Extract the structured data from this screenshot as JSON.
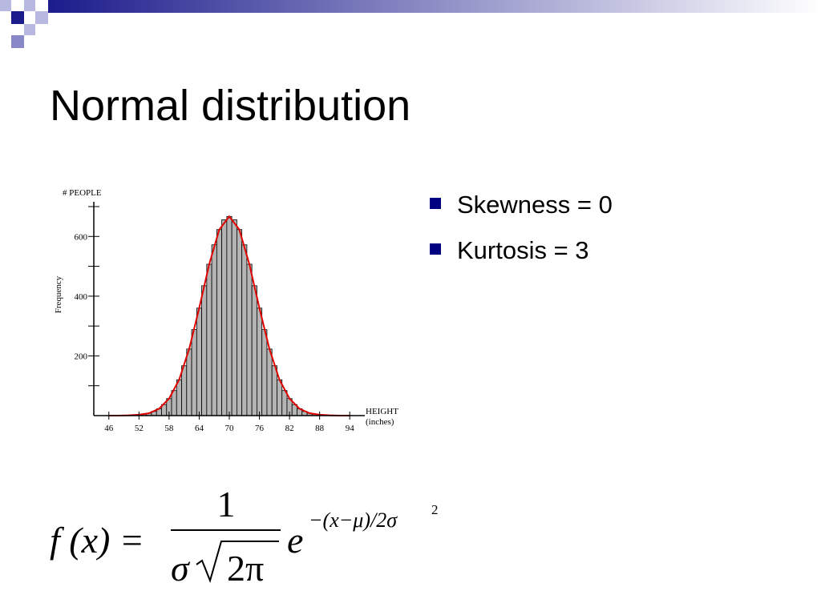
{
  "slide": {
    "title": "Normal distribution",
    "bullets": [
      "Skewness = 0",
      "Kurtosis = 3"
    ],
    "formula": {
      "lhs": "f (x) =",
      "numerator": "1",
      "denominator_sigma": "σ",
      "radicand": "2π",
      "base": "e",
      "exponent": "−(x−μ)/2σ",
      "exponent_power": "2"
    }
  },
  "chart_data": {
    "type": "histogram",
    "y_axis_title": "# PEOPLE",
    "y_axis_label": "Frequency",
    "x_axis_title": "HEIGHT",
    "x_axis_unit": "(inches)",
    "bins": [
      51.5,
      52.5,
      53.5,
      54.5,
      55.5,
      56.5,
      57.5,
      58.5,
      59.5,
      60.5,
      61.5,
      62.5,
      63.5,
      64.5,
      65.5,
      66.5,
      67.5,
      68.5,
      69.5,
      70.5,
      71.5,
      72.5,
      73.5,
      74.5,
      75.5,
      76.5,
      77.5,
      78.5,
      79.5,
      80.5,
      81.5,
      82.5,
      83.5,
      84.5,
      85.5,
      86.5,
      87.5,
      88.5
    ],
    "counts": [
      3,
      5,
      8,
      14,
      23,
      37,
      57,
      84,
      120,
      167,
      223,
      288,
      360,
      435,
      507,
      572,
      623,
      656,
      667,
      656,
      623,
      572,
      507,
      435,
      360,
      288,
      223,
      167,
      120,
      84,
      57,
      37,
      23,
      14,
      8,
      5,
      3
    ],
    "color": "#b4b4b4",
    "fit": {
      "color": "#e00000",
      "x": [
        46,
        48,
        50,
        52,
        54,
        56,
        58,
        60,
        62,
        64,
        66,
        68,
        70,
        72,
        74,
        76,
        78,
        80,
        82,
        84,
        86,
        88,
        90,
        92,
        94
      ],
      "values": [
        0,
        0,
        1,
        3,
        8,
        23,
        57,
        120,
        223,
        360,
        507,
        623,
        667,
        623,
        507,
        360,
        223,
        120,
        57,
        23,
        8,
        3,
        1,
        0,
        0
      ]
    },
    "xlim": [
      43,
      97
    ],
    "xticks": [
      46,
      52,
      58,
      64,
      70,
      76,
      82,
      88,
      94
    ],
    "ylim": [
      0,
      700
    ],
    "yticks": [
      200,
      400,
      600
    ],
    "yminorticks": [
      100,
      300,
      500,
      700
    ]
  }
}
